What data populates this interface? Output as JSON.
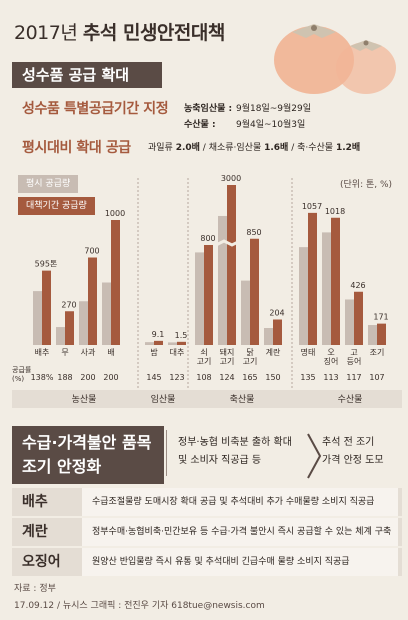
{
  "header": {
    "year": "2017년",
    "title_bold": "추석 민생안전대책"
  },
  "section1": {
    "band": "성수품 공급 확대",
    "special_supply": {
      "heading": "성수품 특별공급기간 지정",
      "rows": [
        {
          "label": "농축임산물 :",
          "period": "9월18일~9월29일"
        },
        {
          "label": "수산물 :",
          "period": "9월4일~10월3일"
        }
      ]
    },
    "expand_supply": {
      "heading": "평시대비 확대 공급",
      "note_parts": [
        {
          "label": "과일류 ",
          "value": "2.0배"
        },
        {
          "label": " / 채소류·임산물 ",
          "value": "1.6배"
        },
        {
          "label": " / 축·수산물 ",
          "value": "1.2배"
        }
      ]
    }
  },
  "chart_legend": {
    "normal": "평시 공급량",
    "special": "대책기간 공급량",
    "unit": "(단위: 톤, %)"
  },
  "chart_data": {
    "type": "bar",
    "series": [
      {
        "name": "평시 공급량",
        "color": "#c8bcb3"
      },
      {
        "name": "대책기간 공급량",
        "color": "#a55a3e"
      }
    ],
    "supply_label": "공급률\n(%)",
    "groups": [
      {
        "name": "농산물",
        "items": [
          {
            "label": "배추",
            "value": 595,
            "value_label": "595톤",
            "rate": "138%"
          },
          {
            "label": "무",
            "value": 270,
            "value_label": "270",
            "rate": "188"
          },
          {
            "label": "사과",
            "value": 700,
            "value_label": "700",
            "rate": "200"
          },
          {
            "label": "배",
            "value": 1000,
            "value_label": "1000",
            "rate": "200"
          }
        ]
      },
      {
        "name": "임산물",
        "items": [
          {
            "label": "밤",
            "value": 9.1,
            "value_label": "9.1",
            "rate": "145"
          },
          {
            "label": "대추",
            "value": 1.5,
            "value_label": "1.5",
            "rate": "123"
          }
        ]
      },
      {
        "name": "축산물",
        "items": [
          {
            "label": "쇠\n고기",
            "value": 800,
            "value_label": "800",
            "rate": "108"
          },
          {
            "label": "돼지\n고기",
            "value": 3000,
            "value_label": "3000",
            "rate": "124",
            "broken": true
          },
          {
            "label": "닭\n고기",
            "value": 850,
            "value_label": "850",
            "rate": "165"
          },
          {
            "label": "계란",
            "value": 204,
            "value_label": "204",
            "rate": "150"
          }
        ]
      },
      {
        "name": "수산물",
        "items": [
          {
            "label": "명태",
            "value": 1057,
            "value_label": "1057",
            "rate": "135"
          },
          {
            "label": "오\n징어",
            "value": 1018,
            "value_label": "1018",
            "rate": "113"
          },
          {
            "label": "고\n등어",
            "value": 426,
            "value_label": "426",
            "rate": "117"
          },
          {
            "label": "조기",
            "value": 171,
            "value_label": "171",
            "rate": "107"
          }
        ]
      }
    ]
  },
  "section2": {
    "band_lines": [
      "수급·가격불안 품목",
      "조기 안정화"
    ],
    "desc_a": [
      "정부·농협 비축분 출하 확대",
      "및 소비자 직공급 등"
    ],
    "desc_b": [
      "추석 전 조기",
      "가격 안정 도모"
    ],
    "items": [
      {
        "label": "배추",
        "text": "수급조절물량 도매시장 확대 공급 및 추석대비 추가 수매물량 소비지 직공급"
      },
      {
        "label": "계란",
        "text": "정부수매·농협비축·민간보유 등 수급·가격 불안시 즉시 공급할 수 있는 체계 구축"
      },
      {
        "label": "오징어",
        "text": "원양산 반입물량 즉시 유통 및 추석대비 긴급수매 물량 소비지 직공급"
      }
    ]
  },
  "footer": {
    "source": "자료 : 정부",
    "credit": "17.09.12 / 뉴시스 그래픽 : 전진우 기자 618tue@newsis.com"
  }
}
